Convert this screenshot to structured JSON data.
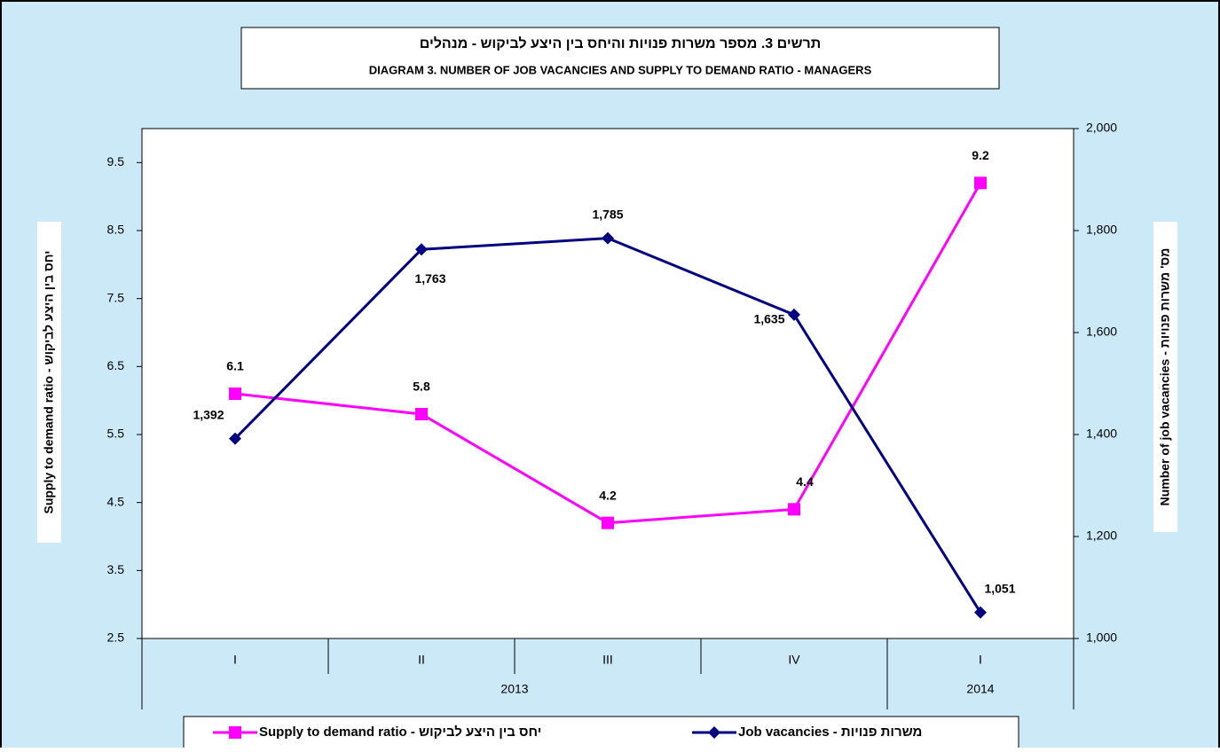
{
  "chart_data": {
    "type": "line",
    "title": "תרשים 3. מספר משרות פנויות והיחס בין היצע לביקוש - מנהלים",
    "subtitle": "DIAGRAM 3. NUMBER OF JOB VACANCIES AND SUPPLY TO DEMAND RATIO - MANAGERS",
    "y_label": "Supply to demand ratio - יחס בין היצע לביקוש",
    "y2_label": "Number of job vacancies - מס' משרות פנויות",
    "categories": [
      "I",
      "II",
      "III",
      "IV",
      "I"
    ],
    "groups": [
      {
        "label": "2013",
        "count": 4
      },
      {
        "label": "2014",
        "count": 1
      }
    ],
    "series": [
      {
        "name": "Supply to demand ratio - יחס בין היצע לביקוש",
        "color": "#ff00ff",
        "marker": "square",
        "values": [
          6.1,
          5.8,
          4.2,
          4.4,
          9.2
        ]
      },
      {
        "name": "Job vacancies - משרות פנויות",
        "color": "#000080",
        "marker": "diamond",
        "axis": "y2",
        "values": [
          1392,
          1763,
          1785,
          1635,
          1051
        ],
        "value_labels": [
          "1,392",
          "1,763",
          "1,785",
          "1,635",
          "1,051"
        ]
      }
    ],
    "ylim": [
      2.5,
      10.0
    ],
    "yticks": [
      2.5,
      3.5,
      4.5,
      5.5,
      6.5,
      7.5,
      8.5,
      9.5
    ],
    "y2lim": [
      1000,
      2000
    ],
    "y2ticks": [
      {
        "value": 1000,
        "label": "1,000"
      },
      {
        "value": 1200,
        "label": "1,200"
      },
      {
        "value": 1400,
        "label": "1,400"
      },
      {
        "value": 1600,
        "label": "1,600"
      },
      {
        "value": 1800,
        "label": "1,800"
      },
      {
        "value": 2000,
        "label": "2,000"
      }
    ],
    "legend": "bottom"
  }
}
